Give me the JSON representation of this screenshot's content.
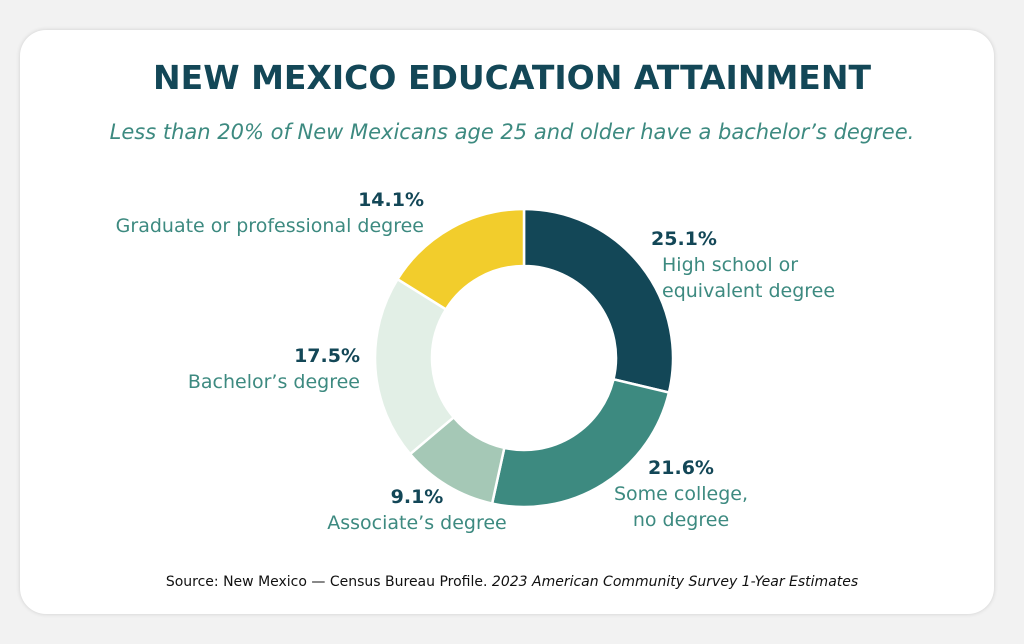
{
  "chart_data": {
    "type": "donut",
    "title": "NEW MEXICO EDUCATION ATTAINMENT",
    "subtitle": "Less than 20% of New Mexicans age 25 and older have a bachelor’s degree.",
    "categories": [
      "High school or equivalent degree",
      "Some college, no degree",
      "Associate’s degree",
      "Bachelor’s degree",
      "Graduate or professional degree"
    ],
    "values": [
      25.1,
      21.6,
      9.1,
      17.5,
      14.1
    ],
    "value_labels": [
      "25.1%",
      "21.6%",
      "9.1%",
      "17.5%",
      "14.1%"
    ],
    "colors": [
      "#134757",
      "#3d8a80",
      "#a5c8b6",
      "#e2efe6",
      "#f2cd2c"
    ],
    "source": "Source: New Mexico — Census Bureau Profile.",
    "source_detail": "2023 American Community Survey 1-Year Estimates"
  }
}
